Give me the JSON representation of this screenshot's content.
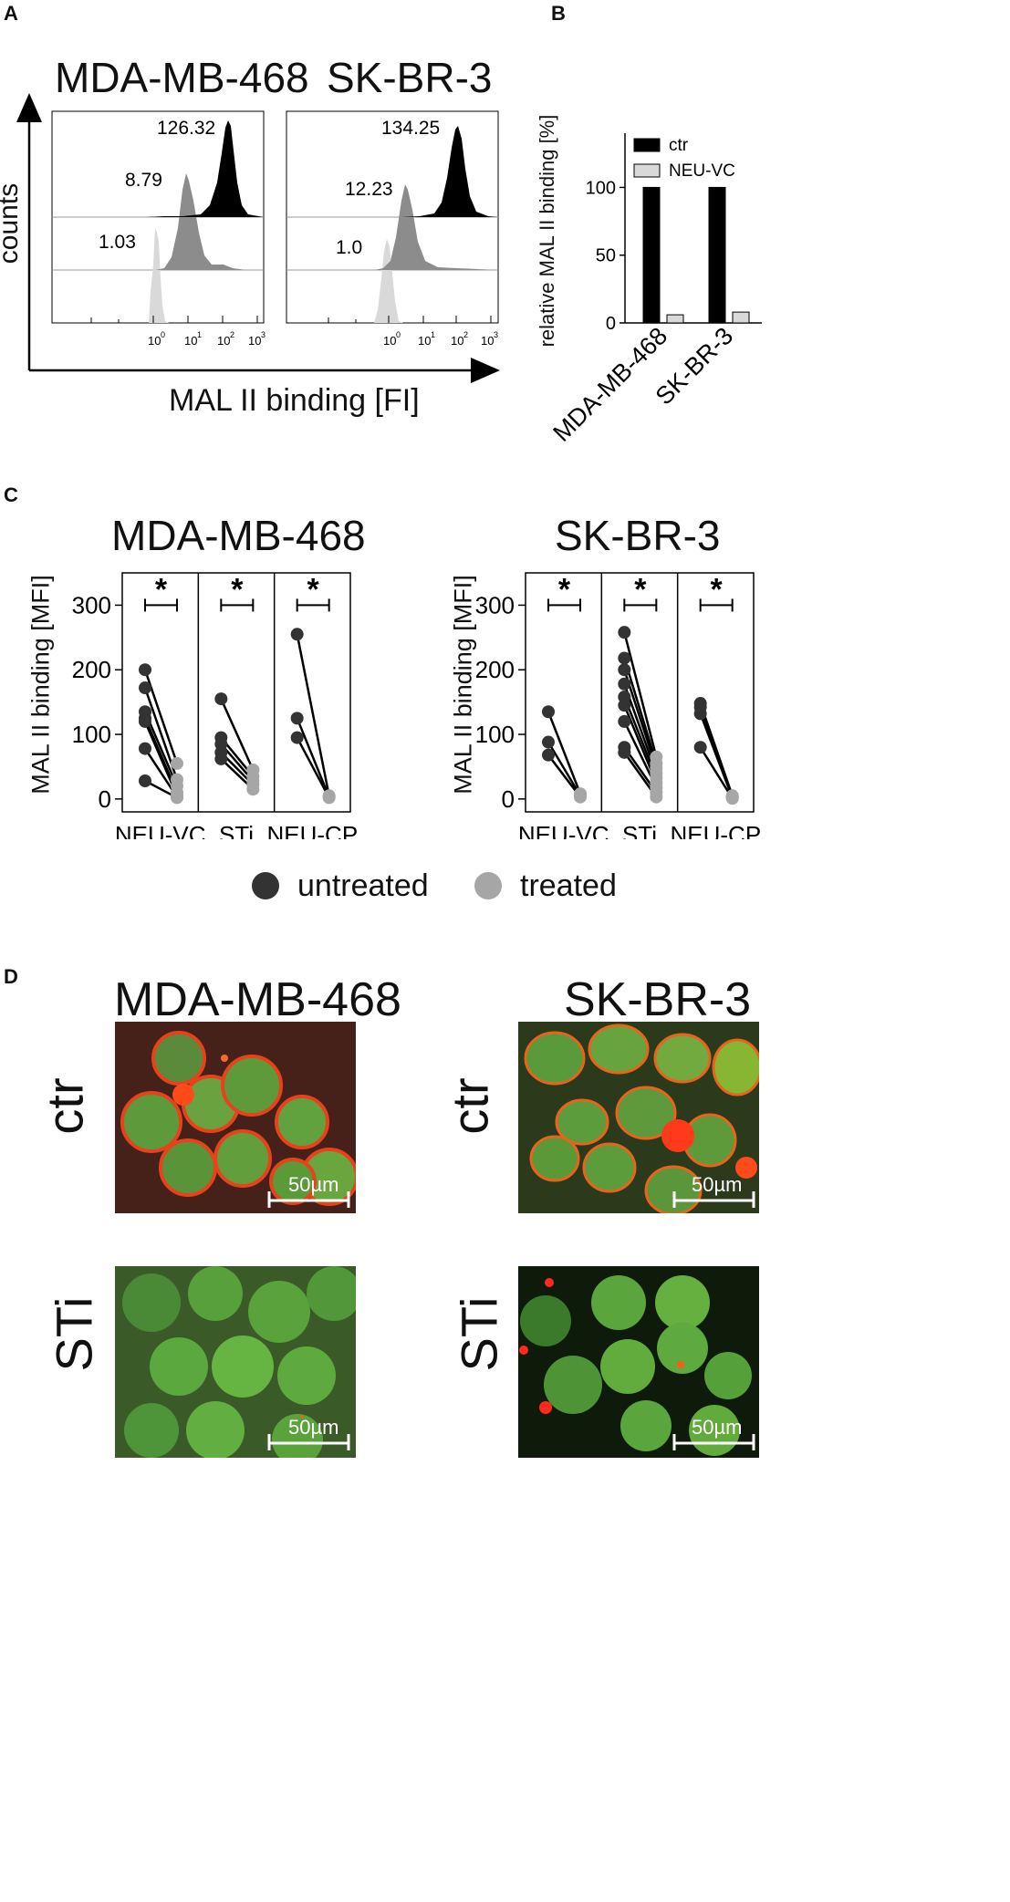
{
  "panels": {
    "a": {
      "letter": "A",
      "titles": [
        "MDA-MB-468",
        "SK-BR-3"
      ],
      "ylabel": "counts",
      "xlabel": "MAL II binding [FI]",
      "left_values": [
        "126.32",
        "8.79",
        "1.03"
      ],
      "right_values": [
        "134.25",
        "12.23",
        "1.0"
      ],
      "tick_labels": [
        "10",
        "10",
        "10",
        "10"
      ],
      "tick_exponents": [
        "0",
        "1",
        "2",
        "3"
      ]
    },
    "b": {
      "letter": "B",
      "ylabel": "relative MAL II binding  [%]",
      "legend": [
        "ctr",
        "NEU-VC"
      ],
      "yticks": [
        "0",
        "50",
        "100"
      ],
      "categories": [
        "MDA-MB-468",
        "SK-BR-3"
      ]
    },
    "c": {
      "letter": "C",
      "titles": [
        "MDA-MB-468",
        "SK-BR-3"
      ],
      "ylabel": "MAL II binding [MFI]",
      "yticks": [
        "0",
        "100",
        "200",
        "300"
      ],
      "groups": [
        "NEU-VC",
        "STi",
        "NEU-CP"
      ],
      "significance": "*",
      "legend": [
        "untreated",
        "treated"
      ]
    },
    "d": {
      "letter": "D",
      "titles": [
        "MDA-MB-468",
        "SK-BR-3"
      ],
      "rows": [
        "ctr",
        "STi"
      ],
      "scalebar": "50µm"
    }
  },
  "colors": {
    "untreated": "#333333",
    "treated": "#a6a6a6",
    "ctr_bar": "#000000",
    "neu_bar": "#d9d9d9"
  },
  "chart_data": [
    {
      "type": "bar",
      "title": "",
      "categories": [
        "MDA-MB-468",
        "SK-BR-3"
      ],
      "series": [
        {
          "name": "ctr",
          "values": [
            100,
            100
          ]
        },
        {
          "name": "NEU-VC",
          "values": [
            6,
            8
          ]
        }
      ],
      "ylabel": "relative MAL II binding  [%]",
      "ylim": [
        0,
        140
      ]
    },
    {
      "type": "scatter",
      "title": "MDA-MB-468",
      "ylabel": "MAL II binding [MFI]",
      "ylim": [
        -20,
        350
      ],
      "groups": [
        {
          "name": "NEU-VC",
          "untreated": [
            200,
            172,
            135,
            125,
            120,
            78,
            28
          ],
          "treated": [
            55,
            30,
            20,
            10,
            5,
            3,
            2
          ]
        },
        {
          "name": "STi",
          "untreated": [
            155,
            95,
            85,
            72,
            62
          ],
          "treated": [
            45,
            35,
            28,
            22,
            15
          ]
        },
        {
          "name": "NEU-CP",
          "untreated": [
            255,
            125,
            95
          ],
          "treated": [
            5,
            3,
            2
          ]
        }
      ]
    },
    {
      "type": "scatter",
      "title": "SK-BR-3",
      "ylabel": "MAL II binding [MFI]",
      "ylim": [
        -20,
        350
      ],
      "groups": [
        {
          "name": "NEU-VC",
          "untreated": [
            135,
            88,
            68
          ],
          "treated": [
            8,
            5,
            3
          ]
        },
        {
          "name": "STi",
          "untreated": [
            258,
            218,
            200,
            178,
            158,
            145,
            120,
            80,
            72
          ],
          "treated": [
            65,
            55,
            48,
            40,
            33,
            25,
            18,
            10,
            3
          ]
        },
        {
          "name": "NEU-CP",
          "untreated": [
            148,
            142,
            132,
            80
          ],
          "treated": [
            5,
            3,
            2,
            1
          ]
        }
      ]
    }
  ]
}
